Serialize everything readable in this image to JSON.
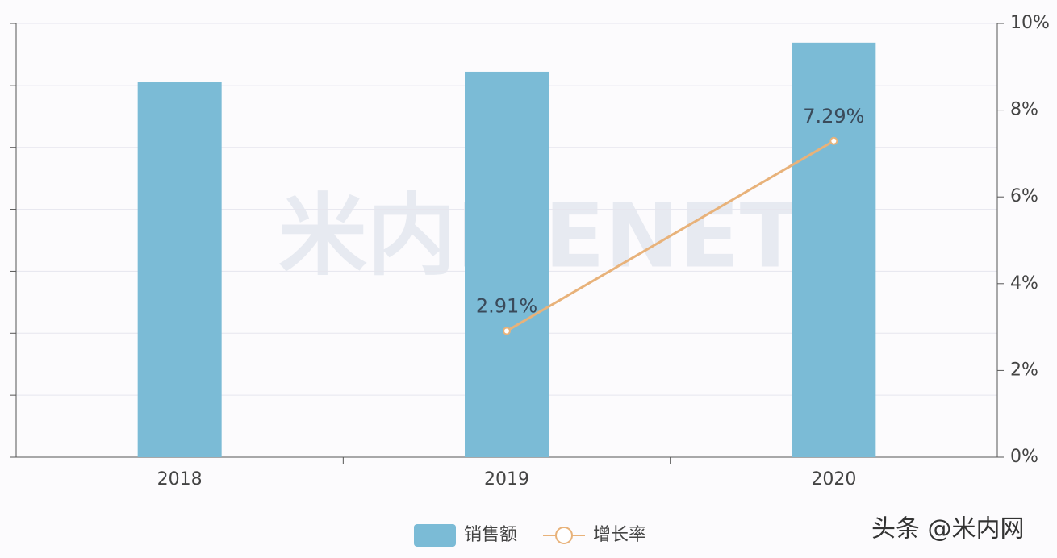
{
  "chart_data": {
    "type": "bar_line",
    "categories": [
      "2018",
      "2019",
      "2020"
    ],
    "series": [
      {
        "name": "销售额",
        "type": "bar",
        "color": "#7bbbd6",
        "values": [
          6.05,
          6.22,
          6.69
        ]
      },
      {
        "name": "增长率",
        "type": "line",
        "axis": "y2",
        "color": "#e8b27a",
        "values": [
          null,
          2.91,
          7.29
        ],
        "value_labels": [
          null,
          "2.91%",
          "7.29%"
        ]
      }
    ],
    "ylim": [
      0,
      7
    ],
    "yticks": [
      0,
      1,
      2,
      3,
      4,
      5,
      6,
      7
    ],
    "y2lim": [
      0,
      10
    ],
    "y2ticks": [
      {
        "value": 0,
        "label": "0%"
      },
      {
        "value": 2,
        "label": "2%"
      },
      {
        "value": 4,
        "label": "4%"
      },
      {
        "value": 6,
        "label": "6%"
      },
      {
        "value": 8,
        "label": "8%"
      },
      {
        "value": 10,
        "label": "10%"
      }
    ],
    "grid": true,
    "watermark": "米内MENET",
    "source": "头条 @米内网"
  }
}
